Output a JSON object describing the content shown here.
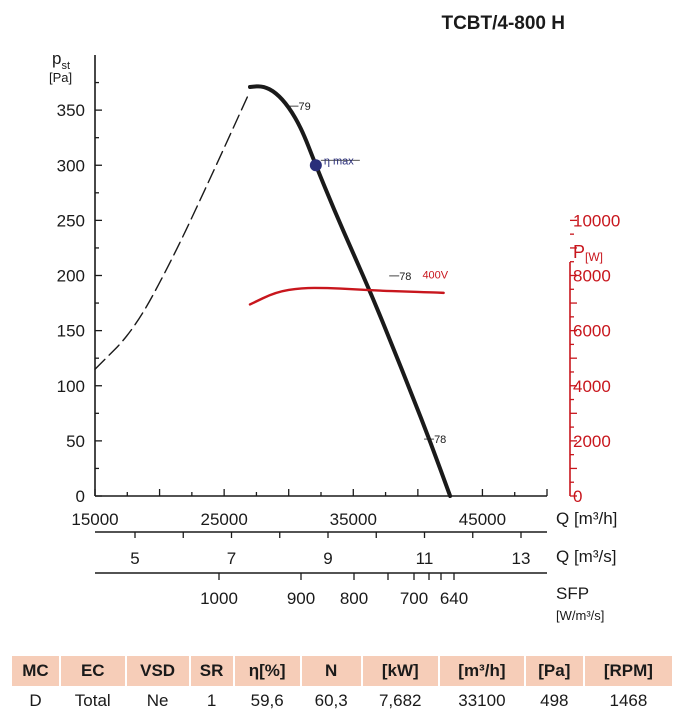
{
  "title": "TCBT/4-800 H",
  "chart_data": {
    "type": "line",
    "title": "TCBT/4-800 H",
    "left_axis": {
      "label_main": "p",
      "label_sub": "st",
      "unit": "[Pa]",
      "range": [
        0,
        400
      ],
      "ticks": [
        "0",
        "50",
        "100",
        "150",
        "200",
        "250",
        "300",
        "350"
      ],
      "tick_values": [
        0,
        50,
        100,
        150,
        200,
        250,
        300,
        350
      ]
    },
    "right_axis": {
      "label_main": "P",
      "unit": "[W]",
      "range": [
        0,
        16000
      ],
      "ticks": [
        "0",
        "2000",
        "4000",
        "6000",
        "8000",
        "10000"
      ],
      "tick_values": [
        0,
        2000,
        4000,
        6000,
        8000,
        10000
      ],
      "color": "#c8161d"
    },
    "x_axis_m3h": {
      "label": "Q [m³/h]",
      "range": [
        15000,
        50000
      ],
      "ticks": [
        "15000",
        "25000",
        "35000",
        "45000"
      ],
      "tick_values": [
        15000,
        25000,
        35000,
        45000
      ]
    },
    "x_axis_m3s": {
      "label": "Q [m³/s]",
      "ticks": [
        "5",
        "7",
        "9",
        "11",
        "13"
      ],
      "tick_values": [
        5,
        7,
        9,
        11,
        13
      ]
    },
    "x_axis_sfp": {
      "label_main": "SFP",
      "unit": "[W/m³/s]",
      "ticks": [
        "1000",
        "900",
        "800",
        "700",
        "640"
      ],
      "tick_values": [
        1000,
        900,
        800,
        700,
        640
      ]
    },
    "series": [
      {
        "kind": "unstable",
        "axis": "left",
        "style": "dashed",
        "points": [
          [
            15000,
            115
          ],
          [
            18000,
            150
          ],
          [
            21000,
            215
          ],
          [
            24000,
            290
          ],
          [
            26800,
            362
          ]
        ]
      },
      {
        "kind": "pressure",
        "axis": "left",
        "style": "solid",
        "points": [
          [
            27000,
            371
          ],
          [
            28000,
            372
          ],
          [
            29000,
            366
          ],
          [
            30000,
            353
          ],
          [
            31000,
            333
          ],
          [
            32100,
            300
          ],
          [
            33500,
            260
          ],
          [
            35000,
            220
          ],
          [
            36500,
            180
          ],
          [
            38000,
            137
          ],
          [
            39500,
            93
          ],
          [
            41000,
            48
          ],
          [
            42500,
            0
          ]
        ]
      },
      {
        "kind": "power",
        "name": "400V",
        "axis": "right",
        "style": "solid",
        "color": "#c8161d",
        "points": [
          [
            27000,
            6950
          ],
          [
            29000,
            7400
          ],
          [
            31000,
            7550
          ],
          [
            33000,
            7550
          ],
          [
            35000,
            7500
          ],
          [
            37000,
            7450
          ],
          [
            39000,
            7420
          ],
          [
            41000,
            7390
          ],
          [
            42000,
            7370
          ]
        ]
      }
    ],
    "markers": [
      {
        "name": "η max",
        "x": 32100,
        "y": 300,
        "color": "#2a2e7a"
      }
    ],
    "annotations": [
      {
        "text": "79",
        "x": 30600,
        "y": 350
      },
      {
        "text": "78",
        "x": 38400,
        "y": 196
      },
      {
        "text": "78",
        "x": 41100,
        "y": 48
      },
      {
        "text": "400V",
        "x": 40200,
        "y": 7900
      }
    ],
    "grid": false
  },
  "table": {
    "headers": [
      "MC",
      "EC",
      "VSD",
      "SR",
      "η[%]",
      "N",
      "[kW]",
      "[m³/h]",
      "[Pa]",
      "[RPM]"
    ],
    "values": [
      "D",
      "Total",
      "Ne",
      "1",
      "59,6",
      "60,3",
      "7,682",
      "33100",
      "498",
      "1468"
    ]
  }
}
